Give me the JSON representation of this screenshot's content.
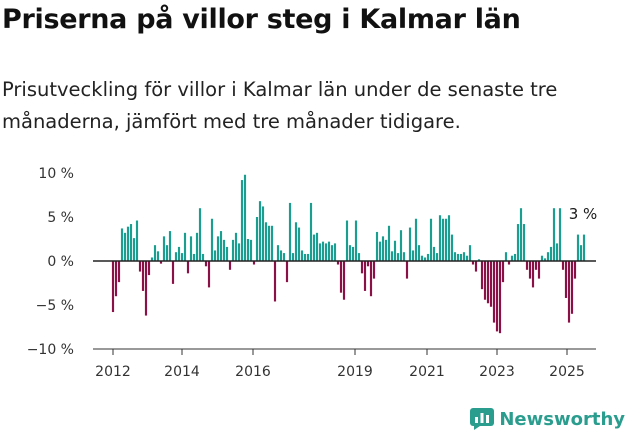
{
  "title": "Priserna på villor steg i Kalmar län",
  "subtitle": "Prisutveckling för villor i Kalmar län under de senaste tre månaderna, jämfört med tre månader tidigare.",
  "brand": "Newsworthy",
  "colors": {
    "positive": "#1a9e8f",
    "negative": "#8b1046",
    "axis": "#333333",
    "grid": "#dddddd",
    "brand": "#2a9d8f"
  },
  "chart_data": {
    "type": "bar",
    "x_ticks": [
      "2012",
      "2014",
      "2016",
      "2019",
      "2021",
      "2023",
      "2025"
    ],
    "y_ticks": [
      "10 %",
      "5 %",
      "0 %",
      "−5 %",
      "−10 %"
    ],
    "ylim": [
      -10,
      10
    ],
    "annotation": "3 %",
    "values": [
      -5.8,
      -4.0,
      -2.4,
      3.7,
      3.2,
      3.9,
      4.2,
      2.6,
      4.6,
      -1.2,
      -3.4,
      -6.2,
      -1.6,
      0.4,
      1.8,
      1.1,
      -0.3,
      2.8,
      1.8,
      3.4,
      -2.6,
      1.0,
      1.6,
      0.9,
      3.2,
      -1.4,
      2.8,
      0.8,
      3.2,
      6.0,
      0.8,
      -0.6,
      -3.0,
      4.8,
      1.2,
      2.8,
      3.4,
      2.4,
      1.6,
      -1.0,
      2.4,
      3.2,
      2.0,
      9.2,
      9.8,
      2.5,
      2.4,
      -0.4,
      5.0,
      6.8,
      6.2,
      4.4,
      4.0,
      4.0,
      -4.6,
      1.8,
      1.2,
      0.9,
      -2.4,
      6.6,
      0.9,
      4.4,
      3.8,
      1.2,
      0.8,
      0.8,
      6.6,
      3.0,
      3.2,
      2.0,
      2.2,
      2.0,
      2.2,
      1.8,
      2.0,
      -0.4,
      -3.6,
      -4.4,
      4.6,
      1.8,
      1.6,
      4.6,
      0.9,
      -1.4,
      -3.4,
      -0.6,
      -4.0,
      -2.0,
      3.3,
      2.2,
      2.8,
      2.4,
      4.0,
      1.1,
      2.3,
      0.9,
      3.5,
      1.0,
      -2.0,
      3.8,
      1.2,
      4.8,
      1.8,
      0.6,
      0.4,
      0.8,
      4.8,
      1.6,
      0.9,
      5.2,
      4.8,
      4.8,
      5.2,
      3.0,
      1.0,
      0.8,
      0.8,
      1.0,
      0.6,
      1.8,
      -0.4,
      -1.2,
      0.2,
      -3.2,
      -4.4,
      -4.8,
      -5.2,
      -7.0,
      -8.0,
      -8.2,
      -2.4,
      1.0,
      -0.4,
      0.6,
      0.8,
      4.2,
      6.0,
      4.2,
      -1.0,
      -2.0,
      -3.0,
      -1.0,
      -2.0,
      0.6,
      0.3,
      1.0,
      1.6,
      6.0,
      2.0,
      6.0,
      -1.0,
      -4.2,
      -7.0,
      -6.0,
      -2.0,
      3.0,
      1.8,
      3.0
    ]
  }
}
